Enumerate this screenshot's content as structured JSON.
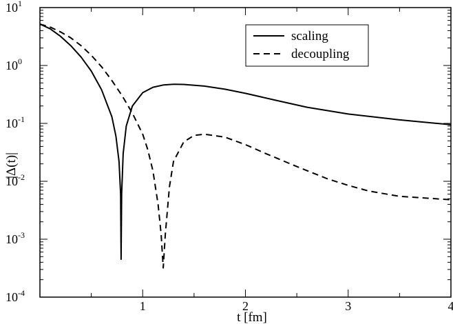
{
  "chart_data": {
    "type": "line",
    "xlabel": "t [fm]",
    "ylabel": "|Δ(t)|",
    "xlim": [
      0,
      4
    ],
    "ylim": [
      0.0001,
      10
    ],
    "yscale": "log",
    "x_ticks": [
      1,
      2,
      3,
      4
    ],
    "x_tick_labels": [
      "1",
      "2",
      "3",
      "4"
    ],
    "y_ticks": [
      {
        "base": "10",
        "exp": "1"
      },
      {
        "base": "10",
        "exp": "0"
      },
      {
        "base": "10",
        "exp": "-1"
      },
      {
        "base": "10",
        "exp": "-2"
      },
      {
        "base": "10",
        "exp": "-3"
      },
      {
        "base": "10",
        "exp": "-4"
      }
    ],
    "grid": false,
    "legend_position": "top-right",
    "series": [
      {
        "name": "scaling",
        "style": "solid",
        "x": [
          0.0,
          0.1,
          0.2,
          0.3,
          0.4,
          0.5,
          0.6,
          0.7,
          0.74,
          0.77,
          0.785,
          0.79,
          0.795,
          0.81,
          0.84,
          0.9,
          1.0,
          1.1,
          1.2,
          1.3,
          1.4,
          1.6,
          1.8,
          2.0,
          2.3,
          2.6,
          3.0,
          3.5,
          4.0
        ],
        "y": [
          5.2,
          4.3,
          3.2,
          2.2,
          1.4,
          0.8,
          0.38,
          0.13,
          0.06,
          0.022,
          0.006,
          0.00045,
          0.006,
          0.03,
          0.09,
          0.2,
          0.34,
          0.42,
          0.46,
          0.475,
          0.47,
          0.44,
          0.39,
          0.33,
          0.25,
          0.19,
          0.145,
          0.115,
          0.095
        ]
      },
      {
        "name": "decoupling",
        "style": "dashed",
        "x": [
          0.0,
          0.1,
          0.2,
          0.3,
          0.4,
          0.5,
          0.6,
          0.7,
          0.8,
          0.9,
          1.0,
          1.05,
          1.1,
          1.15,
          1.18,
          1.2,
          1.22,
          1.26,
          1.3,
          1.4,
          1.5,
          1.6,
          1.8,
          2.0,
          2.2,
          2.5,
          2.8,
          3.0,
          3.2,
          3.5,
          4.0
        ],
        "y": [
          5.2,
          4.6,
          3.8,
          3.0,
          2.2,
          1.5,
          0.95,
          0.55,
          0.3,
          0.15,
          0.065,
          0.035,
          0.015,
          0.004,
          0.0012,
          0.00032,
          0.0012,
          0.008,
          0.022,
          0.048,
          0.062,
          0.065,
          0.058,
          0.043,
          0.03,
          0.018,
          0.011,
          0.0085,
          0.0068,
          0.0055,
          0.0048
        ]
      }
    ]
  }
}
